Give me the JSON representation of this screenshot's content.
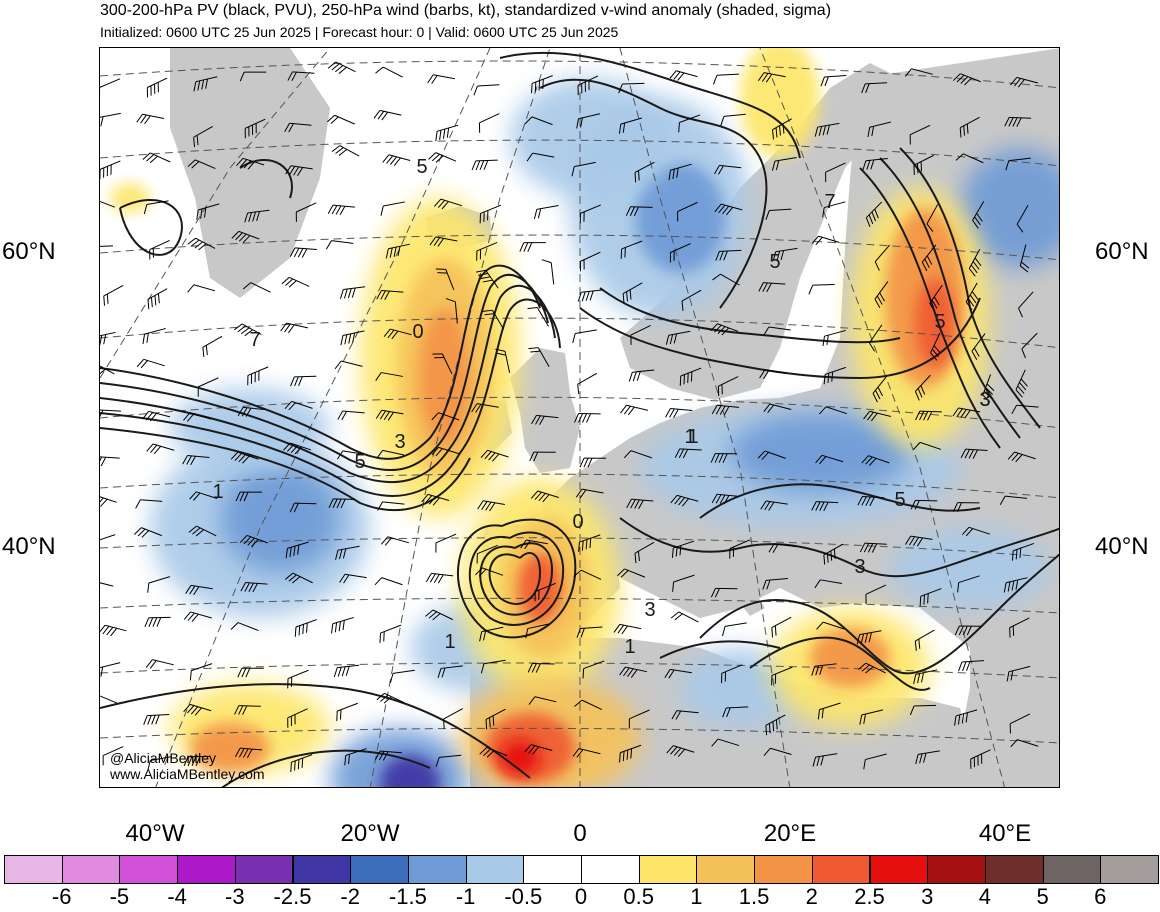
{
  "header": {
    "title": "300-200-hPa PV (black, PVU), 250-hPa wind (barbs, kt), standardized v-wind anomaly (shaded, sigma)",
    "subtitle": "Initialized: 0600 UTC 25 Jun 2025 | Forecast hour: 0 | Valid: 0600 UTC 25 Jun 2025"
  },
  "axes": {
    "lat_labels_left": [
      "60°N",
      "40°N"
    ],
    "lat_labels_right": [
      "60°N",
      "40°N"
    ],
    "lon_labels": [
      "40°W",
      "20°W",
      "0",
      "20°E",
      "40°E"
    ]
  },
  "credits": {
    "handle": "@AliciaMBentley",
    "website": "www.AliciaMBentley.com"
  },
  "colorbar": {
    "labels": [
      "-6",
      "-5",
      "-4",
      "-3",
      "-2.5",
      "-2",
      "-1.5",
      "-1",
      "-0.5",
      "0",
      "0.5",
      "1",
      "1.5",
      "2",
      "2.5",
      "3",
      "4",
      "5",
      "6"
    ],
    "colors": [
      "#e8b6e6",
      "#e08ae0",
      "#d24fd8",
      "#ad18c8",
      "#7a2fb0",
      "#4036a6",
      "#3c6dbd",
      "#6f9bd6",
      "#a9c9e8",
      "#ffffff",
      "#ffffff",
      "#fde66a",
      "#f5c25a",
      "#f39346",
      "#ef5a33",
      "#e60f0f",
      "#a51010",
      "#6e2f2b",
      "#6e6464",
      "#a59c9c"
    ]
  },
  "map": {
    "land_color": "#c8c8c8",
    "pv_contour_labels": [
      "5",
      "7",
      "5",
      "7",
      "5",
      "1",
      "3",
      "5",
      "3",
      "1",
      "3",
      "5",
      "3",
      "1",
      "1",
      "3",
      "1",
      "0",
      "0"
    ]
  }
}
